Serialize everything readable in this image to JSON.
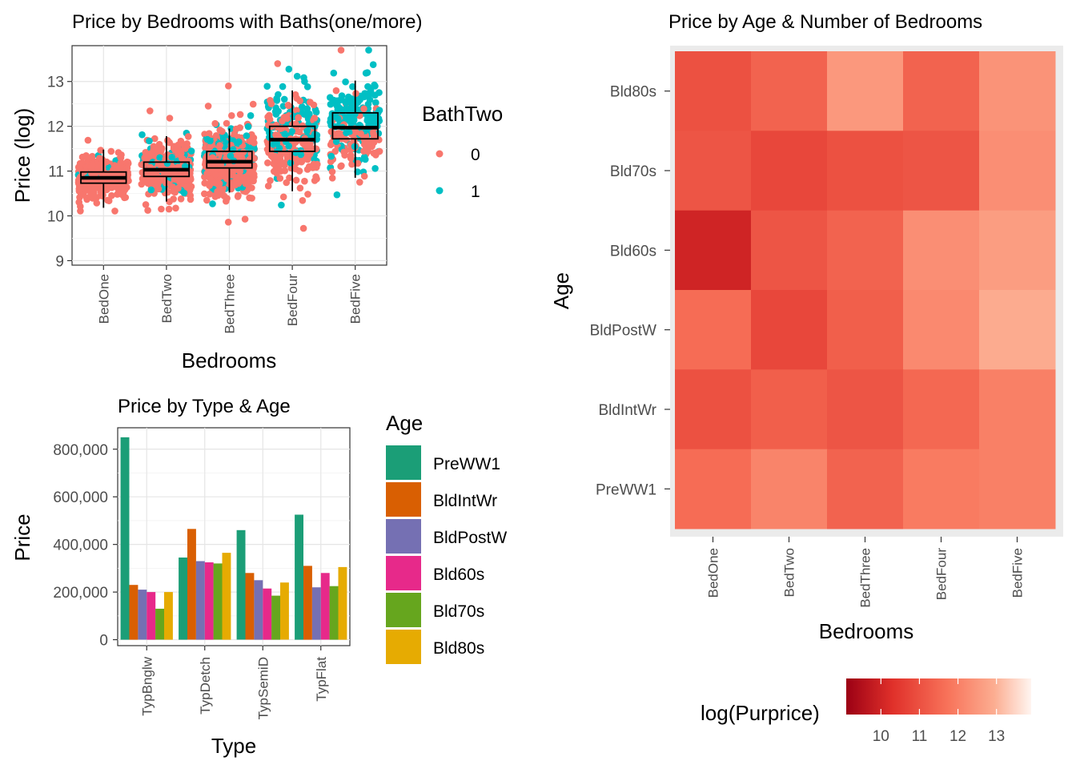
{
  "chart_data": [
    {
      "type": "box",
      "title": "Price by Bedrooms with Baths(one/more)",
      "xlabel": "Bedrooms",
      "ylabel": "Price (log)",
      "categories": [
        "BedOne",
        "BedTwo",
        "BedThree",
        "BedFour",
        "BedFive"
      ],
      "yticks": [
        9,
        10,
        11,
        12,
        13
      ],
      "ylim": [
        8.9,
        13.8
      ],
      "grid": true,
      "legend": {
        "title": "BathTwo",
        "position": "right",
        "entries": [
          {
            "label": "0",
            "color": "#F8766D"
          },
          {
            "label": "1",
            "color": "#00BFC4"
          }
        ]
      },
      "boxes": [
        {
          "category": "BedOne",
          "whisker_low": 10.18,
          "q1": 10.73,
          "median": 10.85,
          "q3": 10.98,
          "whisker_high": 11.48
        },
        {
          "category": "BedTwo",
          "whisker_low": 10.32,
          "q1": 10.88,
          "median": 11.03,
          "q3": 11.2,
          "whisker_high": 11.78
        },
        {
          "category": "BedThree",
          "whisker_low": 10.52,
          "q1": 11.07,
          "median": 11.21,
          "q3": 11.44,
          "whisker_high": 11.95
        },
        {
          "category": "BedFour",
          "whisker_low": 10.55,
          "q1": 11.44,
          "median": 11.7,
          "q3": 12.0,
          "whisker_high": 12.8
        },
        {
          "category": "BedFive",
          "whisker_low": 10.85,
          "q1": 11.72,
          "median": 11.97,
          "q3": 12.3,
          "whisker_high": 13.02
        }
      ]
    },
    {
      "type": "bar",
      "title": "Price by Type & Age",
      "xlabel": "Type",
      "ylabel": "Price",
      "categories": [
        "TypBnglw",
        "TypDetch",
        "TypSemiD",
        "TypFlat"
      ],
      "yticks": [
        0,
        200000,
        400000,
        600000,
        800000
      ],
      "ytick_labels": [
        "0",
        "200,000",
        "400,000",
        "600,000",
        "800,000"
      ],
      "ylim": [
        -25000,
        890000
      ],
      "grid": true,
      "legend": {
        "title": "Age",
        "position": "right"
      },
      "series": [
        {
          "name": "PreWW1",
          "color": "#1B9E77",
          "values": [
            850000,
            345000,
            460000,
            525000
          ]
        },
        {
          "name": "BldIntWr",
          "color": "#D95F02",
          "values": [
            230000,
            465000,
            280000,
            310000
          ]
        },
        {
          "name": "BldPostW",
          "color": "#7570B3",
          "values": [
            210000,
            330000,
            250000,
            220000
          ]
        },
        {
          "name": "Bld60s",
          "color": "#E7298A",
          "values": [
            200000,
            325000,
            215000,
            280000
          ]
        },
        {
          "name": "Bld70s",
          "color": "#66A61E",
          "values": [
            130000,
            320000,
            185000,
            225000
          ]
        },
        {
          "name": "Bld80s",
          "color": "#E6AB02",
          "values": [
            200000,
            365000,
            240000,
            305000
          ]
        }
      ]
    },
    {
      "type": "heatmap",
      "title": "Price by Age & Number of Bedrooms",
      "xlabel": "Bedrooms",
      "ylabel": "Age",
      "x": [
        "BedOne",
        "BedTwo",
        "BedThree",
        "BedFour",
        "BedFive"
      ],
      "y": [
        "Bld80s",
        "Bld70s",
        "Bld60s",
        "BldPostW",
        "BldIntWr",
        "PreWW1"
      ],
      "values": [
        [
          11.0,
          11.4,
          12.5,
          11.4,
          12.4
        ],
        [
          11.1,
          10.8,
          11.0,
          11.1,
          12.3
        ],
        [
          10.0,
          11.1,
          11.4,
          12.3,
          12.6
        ],
        [
          11.6,
          10.8,
          11.3,
          12.2,
          12.9
        ],
        [
          11.0,
          11.3,
          11.1,
          11.5,
          12.0
        ],
        [
          11.6,
          12.1,
          11.4,
          11.9,
          12.0
        ]
      ],
      "colorbar": {
        "title": "log(Purprice)",
        "ticks": [
          10,
          11,
          12,
          13
        ],
        "range": [
          9.1,
          13.9
        ],
        "low_color": "#9B0014",
        "high_color": "#FFF5F0",
        "position": "bottom"
      }
    }
  ]
}
